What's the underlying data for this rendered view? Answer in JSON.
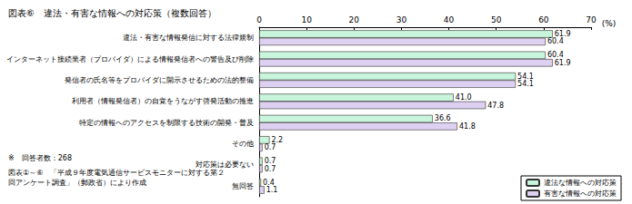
{
  "chart_data": {
    "type": "bar",
    "orientation": "horizontal",
    "title": "図表⑥　違法・有害な情報への対応策（複数回答）",
    "xlabel": "(%)",
    "categories": [
      "違法・有害な情報発信に対する法律規制",
      "インターネット接続業者（プロバイダ）による情報発信者への警告及び削除",
      "発信者の氏名等をプロバイダに開示させるための法的整備",
      "利用者（情報発信者）の自覚をうながす啓発活動の推進",
      "特定の情報へのアクセスを制限する技術の開発・普及",
      "その他",
      "対応策は必要ない",
      "無回答"
    ],
    "series": [
      {
        "name": "違法な情報への対応策",
        "color": "#c8f5dc",
        "values": [
          61.9,
          60.4,
          54.1,
          41.0,
          36.6,
          2.2,
          0.7,
          0.4
        ],
        "value_labels": [
          "61.9",
          "60.4",
          "54.1",
          "41.0",
          "36.6",
          "2.2",
          "0.7",
          "0.4"
        ]
      },
      {
        "name": "有害な情報への対応策",
        "color": "#ddd0f0",
        "values": [
          60.4,
          61.9,
          54.1,
          47.8,
          41.8,
          0.7,
          0.7,
          1.1
        ],
        "value_labels": [
          "60.4",
          "61.9",
          "54.1",
          "47.8",
          "41.8",
          "0.7",
          "0.7",
          "1.1"
        ]
      }
    ],
    "xlim": [
      0,
      70
    ],
    "xticks": [
      0,
      10,
      20,
      30,
      40,
      50,
      60,
      70
    ],
    "grid": false,
    "data_labels": true,
    "legend": "lower right",
    "notes": [
      "※　回答者数：268",
      "図表①～⑥　「平成９年度電気通信サービスモニターに対する第２回アンケート調査」（郵政省）により作成"
    ]
  }
}
